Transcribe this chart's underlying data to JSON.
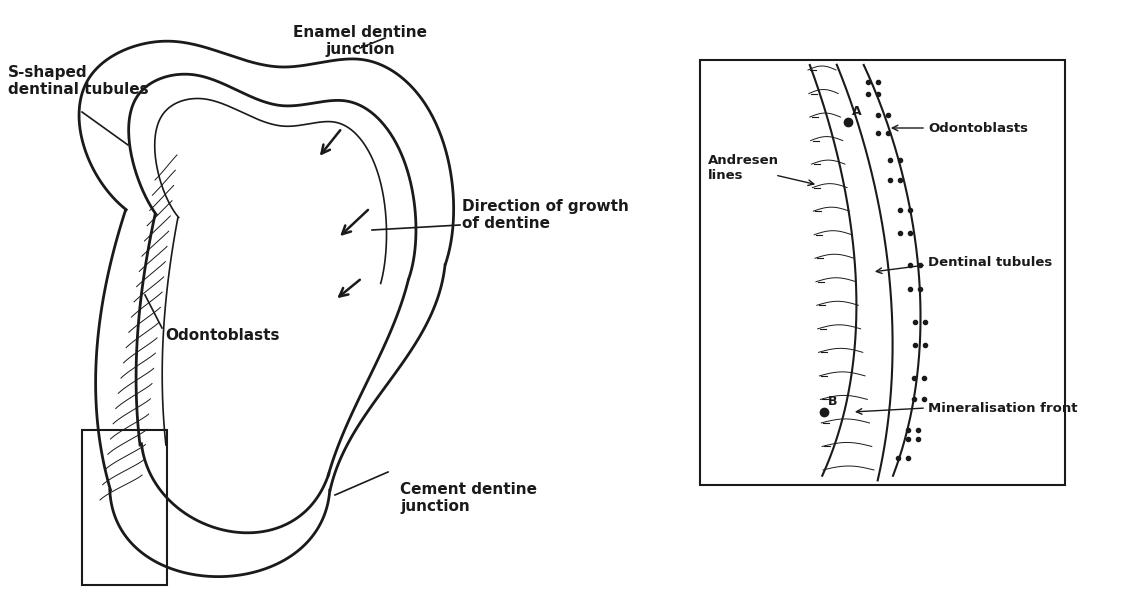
{
  "bg_color": "#ffffff",
  "line_color": "#1a1a1a",
  "lw_main": 2.0,
  "lw_thin": 1.0,
  "fig_width": 11.35,
  "fig_height": 6.0,
  "labels": {
    "s_shaped": "S-shaped\ndentinal tubules",
    "enamel": "Enamel dentine\njunction",
    "direction": "Direction of growth\nof dentine",
    "odontoblasts_left": "Odontoblasts",
    "cement": "Cement dentine\njunction",
    "andresen": "Andresen\nlines",
    "odontoblasts_right": "Odontoblasts",
    "dentinal_tubules": "Dentinal tubules",
    "mineralisation": "Mineralisation front"
  }
}
